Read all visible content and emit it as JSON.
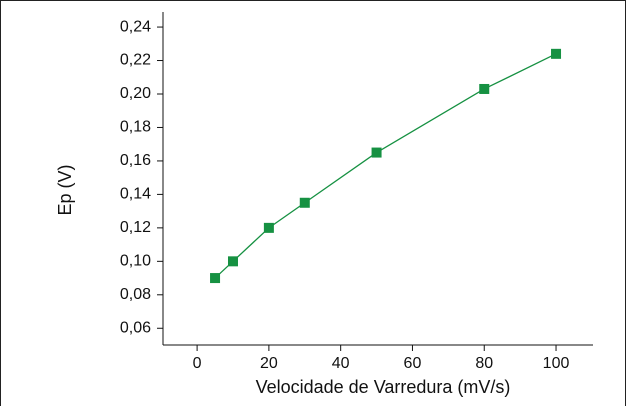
{
  "chart_data": {
    "type": "line",
    "x_label": "Velocidade de Varredura (mV/s)",
    "y_label": "Ep (V)",
    "x": [
      5,
      10,
      20,
      30,
      50,
      80,
      100
    ],
    "series": [
      {
        "color": "#169142",
        "values": [
          0.09,
          0.1,
          0.12,
          0.135,
          0.165,
          0.203,
          0.224
        ]
      }
    ],
    "xlim": [
      -9.5,
      110.3
    ],
    "xticks": [
      0,
      20,
      40,
      60,
      80,
      100
    ],
    "ylim": [
      0.05,
      0.249
    ],
    "yticks": [
      {
        "value": 0.06,
        "label": "0,06"
      },
      {
        "value": 0.08,
        "label": "0,08"
      },
      {
        "value": 0.1,
        "label": "0,10"
      },
      {
        "value": 0.12,
        "label": "0,12"
      },
      {
        "value": 0.14,
        "label": "0,14"
      },
      {
        "value": 0.16,
        "label": "0,16"
      },
      {
        "value": 0.18,
        "label": "0,18"
      },
      {
        "value": 0.2,
        "label": "0,20"
      },
      {
        "value": 0.22,
        "label": "0,22"
      },
      {
        "value": 0.24,
        "label": "0,24"
      }
    ],
    "grid": false
  }
}
